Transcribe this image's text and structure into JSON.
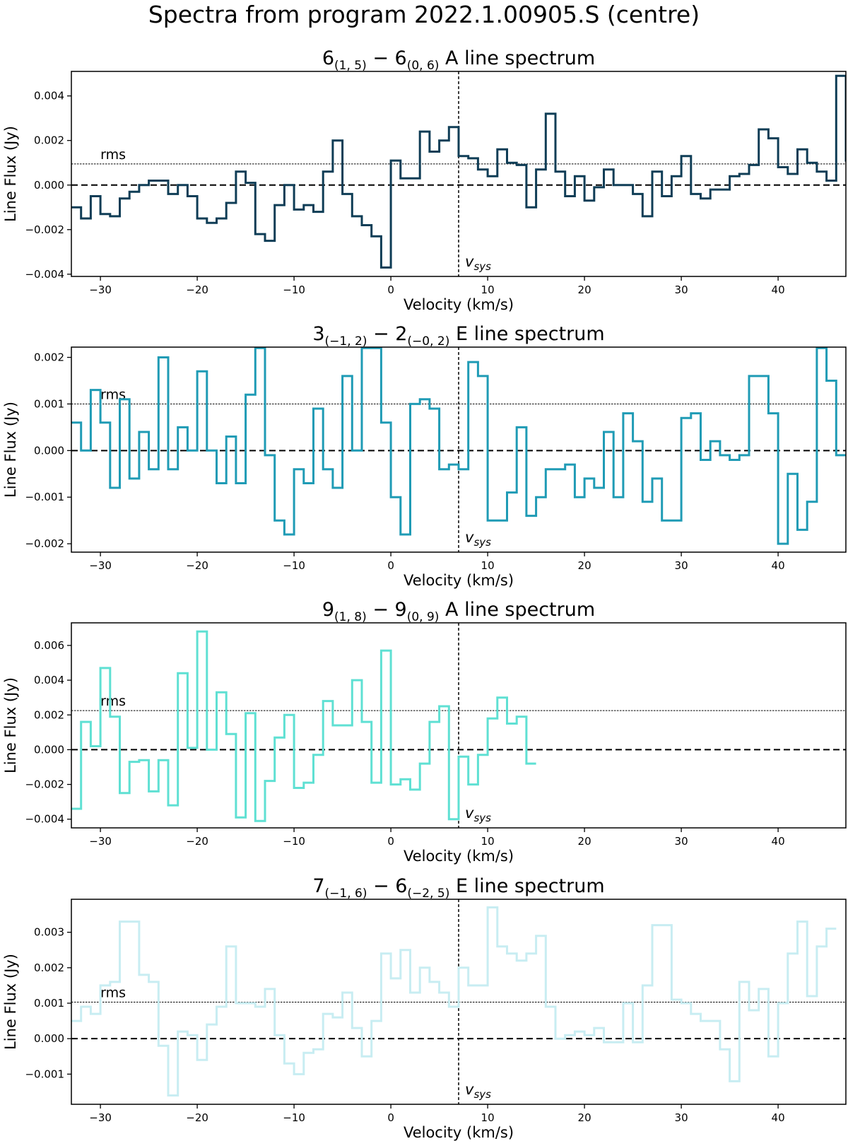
{
  "figure": {
    "title": "Spectra from program 2022.1.00905.S (centre)"
  },
  "chart_data": [
    {
      "type": "line",
      "style": "step",
      "title": "6(1,5) − 6(0,6) A line spectrum",
      "title_parts": {
        "n1": "6",
        "q1": "(1, 5)",
        "n2": "6",
        "q2": "(0, 6)",
        "tail": "A line spectrum"
      },
      "xlabel": "Velocity (km/s)",
      "ylabel": "Line Flux (Jy)",
      "xlim": [
        -33,
        47
      ],
      "ylim": [
        -0.0041,
        0.0051
      ],
      "xticks": [
        -30,
        -20,
        -10,
        0,
        10,
        20,
        30,
        40
      ],
      "xtick_labels": [
        "−30",
        "−20",
        "−10",
        "0",
        "10",
        "20",
        "30",
        "40"
      ],
      "yticks": [
        -0.004,
        -0.002,
        0.0,
        0.002,
        0.004
      ],
      "ytick_labels": [
        "−0.004",
        "−0.002",
        "0.000",
        "0.002",
        "0.004"
      ],
      "color": "#0f3d56",
      "rms": 0.00095,
      "rms_label": "rms",
      "vsys": 7.0,
      "vsys_label": "v",
      "vsys_sub": "sys",
      "x_start": -33.0,
      "x_step": 1.0,
      "values": [
        -0.001,
        -0.0015,
        -0.0005,
        -0.0013,
        -0.0014,
        -0.0006,
        -0.0003,
        0.0,
        0.0002,
        0.0002,
        -0.0004,
        0.0,
        -0.0005,
        -0.0015,
        -0.0017,
        -0.0015,
        -0.0008,
        0.0006,
        0.0001,
        -0.0022,
        -0.0025,
        -0.0009,
        0.0,
        -0.0011,
        -0.0009,
        -0.0012,
        0.0006,
        0.002,
        -0.0004,
        -0.0014,
        -0.0018,
        -0.0023,
        -0.0037,
        0.0011,
        0.0003,
        0.0003,
        0.0024,
        0.0015,
        0.002,
        0.0026,
        0.0013,
        0.0012,
        0.0007,
        0.0004,
        0.0016,
        0.001,
        0.0009,
        -0.001,
        0.0007,
        0.0032,
        0.0006,
        -0.0005,
        0.0004,
        -0.0007,
        -0.0001,
        0.0007,
        0.0,
        0.0,
        -0.0004,
        -0.0014,
        0.0006,
        -0.0005,
        0.0004,
        0.0013,
        -0.0004,
        -0.0006,
        -0.0002,
        -0.0002,
        0.0004,
        0.0005,
        0.0009,
        0.0025,
        0.0021,
        0.0008,
        0.0005,
        0.0016,
        0.001,
        0.0006,
        0.0002,
        0.0049,
        0.0011
      ]
    },
    {
      "type": "line",
      "style": "step",
      "title": "3(−1,2) − 2(−0,2) E line spectrum",
      "title_parts": {
        "n1": "3",
        "q1": "(−1, 2)",
        "n2": "2",
        "q2": "(−0, 2)",
        "tail": "E line spectrum"
      },
      "xlabel": "Velocity (km/s)",
      "ylabel": "Line Flux (Jy)",
      "xlim": [
        -33,
        47
      ],
      "ylim": [
        -0.00218,
        0.00222
      ],
      "xticks": [
        -30,
        -20,
        -10,
        0,
        10,
        20,
        30,
        40
      ],
      "xtick_labels": [
        "−30",
        "−20",
        "−10",
        "0",
        "10",
        "20",
        "30",
        "40"
      ],
      "yticks": [
        -0.002,
        -0.001,
        0.0,
        0.001,
        0.002
      ],
      "ytick_labels": [
        "−0.002",
        "−0.001",
        "0.000",
        "0.001",
        "0.002"
      ],
      "color": "#1f9bb5",
      "rms": 0.001,
      "rms_label": "rms",
      "vsys": 7.0,
      "vsys_label": "v",
      "vsys_sub": "sys",
      "x_start": -33.0,
      "x_step": 1.0,
      "values": [
        0.0006,
        -0.0,
        0.0013,
        0.0006,
        -0.0008,
        0.0011,
        -0.0006,
        0.0004,
        -0.0004,
        0.002,
        -0.0004,
        0.0005,
        -0.0,
        0.0017,
        -0.0,
        -0.0007,
        0.0003,
        -0.0007,
        0.0012,
        0.0022,
        -0.0001,
        -0.0015,
        -0.0018,
        -0.0004,
        -0.0007,
        0.0009,
        -0.0004,
        -0.0008,
        0.0016,
        0.0,
        0.0022,
        0.0022,
        0.0006,
        -0.001,
        -0.0018,
        0.001,
        0.0011,
        0.0009,
        -0.0004,
        -0.0003,
        -0.0004,
        0.0019,
        0.0016,
        -0.0015,
        -0.0015,
        -0.0009,
        0.0005,
        -0.0014,
        -0.001,
        -0.0004,
        -0.0004,
        -0.0003,
        -0.001,
        -0.0006,
        -0.0008,
        0.0004,
        -0.001,
        0.0008,
        0.0002,
        -0.0011,
        -0.0006,
        -0.0015,
        -0.0015,
        0.0007,
        0.0008,
        -0.0002,
        0.0002,
        -0.0001,
        -0.0002,
        -0.0001,
        0.0016,
        0.0016,
        0.0008,
        -0.002,
        -0.0005,
        -0.0017,
        -0.0011,
        0.0022,
        0.0015,
        -0.0001
      ]
    },
    {
      "type": "line",
      "style": "step",
      "title": "9(1,8) − 9(0,9) A line spectrum",
      "title_parts": {
        "n1": "9",
        "q1": "(1, 8)",
        "n2": "9",
        "q2": "(0, 9)",
        "tail": "A line spectrum"
      },
      "xlabel": "Velocity (km/s)",
      "ylabel": "Line Flux (Jy)",
      "xlim": [
        -33,
        47
      ],
      "ylim": [
        -0.0045,
        0.0073
      ],
      "xticks": [
        -30,
        -20,
        -10,
        0,
        10,
        20,
        30,
        40
      ],
      "xtick_labels": [
        "−30",
        "−20",
        "−10",
        "0",
        "10",
        "20",
        "30",
        "40"
      ],
      "yticks": [
        -0.004,
        -0.002,
        0.0,
        0.002,
        0.004,
        0.006
      ],
      "ytick_labels": [
        "−0.004",
        "−0.002",
        "0.000",
        "0.002",
        "0.004",
        "0.006"
      ],
      "color": "#5fe0d3",
      "rms": 0.00225,
      "rms_label": "rms",
      "vsys": 7.0,
      "vsys_label": "v",
      "vsys_sub": "sys",
      "x_start": -33.0,
      "x_step": 1.0,
      "values": [
        -0.0034,
        0.0016,
        0.0002,
        0.0047,
        0.0019,
        -0.0025,
        -0.0007,
        -0.0006,
        -0.0024,
        -0.0006,
        -0.0032,
        0.0044,
        0.0001,
        0.0068,
        0.0,
        0.0033,
        0.0009,
        -0.0039,
        0.0021,
        -0.0041,
        -0.0018,
        0.0007,
        0.002,
        -0.0022,
        -0.0019,
        -0.0003,
        0.0028,
        0.0014,
        0.0014,
        0.004,
        0.0016,
        -0.0019,
        0.0057,
        -0.002,
        -0.0017,
        -0.0023,
        -0.0008,
        0.0016,
        0.0025,
        -0.004,
        -0.0004,
        -0.002,
        -0.0003,
        0.0018,
        0.003,
        0.0015,
        0.0019,
        -0.0008
      ]
    },
    {
      "type": "line",
      "style": "step",
      "title": "7(−1,6) − 6(−2,5) E line spectrum",
      "title_parts": {
        "n1": "7",
        "q1": "(−1, 6)",
        "n2": "6",
        "q2": "(−2, 5)",
        "tail": "E line spectrum"
      },
      "xlabel": "Velocity (km/s)",
      "ylabel": "Line Flux (Jy)",
      "xlim": [
        -33,
        47
      ],
      "ylim": [
        -0.00185,
        0.00393
      ],
      "xticks": [
        -30,
        -20,
        -10,
        0,
        10,
        20,
        30,
        40
      ],
      "xtick_labels": [
        "−30",
        "−20",
        "−10",
        "0",
        "10",
        "20",
        "30",
        "40"
      ],
      "yticks": [
        -0.001,
        0.0,
        0.001,
        0.002,
        0.003
      ],
      "ytick_labels": [
        "−0.001",
        "0.000",
        "0.001",
        "0.002",
        "0.003"
      ],
      "color": "#c8edf2",
      "rms": 0.00103,
      "rms_label": "rms",
      "vsys": 7.0,
      "vsys_label": "v",
      "vsys_sub": "sys",
      "x_start": -33.0,
      "x_step": 1.0,
      "values": [
        0.0005,
        0.0009,
        0.0007,
        0.0015,
        0.0016,
        0.0033,
        0.0033,
        0.0018,
        0.0016,
        -0.0002,
        -0.0016,
        0.0002,
        0.0001,
        -0.0006,
        0.0004,
        0.0009,
        0.0026,
        0.001,
        0.001,
        0.0009,
        0.0014,
        0.0001,
        -0.0007,
        -0.001,
        -0.0004,
        -0.0003,
        0.0007,
        0.0006,
        0.0013,
        0.0003,
        -0.0005,
        0.0005,
        0.0024,
        0.0017,
        0.0025,
        0.0013,
        0.002,
        0.0016,
        0.0013,
        0.0009,
        0.002,
        0.0015,
        0.0015,
        0.0037,
        0.0026,
        0.0024,
        0.0022,
        0.0024,
        0.0029,
        0.0009,
        0.0,
        0.0001,
        0.0002,
        0.0001,
        0.0003,
        -0.0001,
        -0.0001,
        0.001,
        -0.0001,
        0.0015,
        0.0032,
        0.0032,
        0.0011,
        0.001,
        0.0007,
        0.0005,
        0.0005,
        -0.0003,
        -0.0012,
        0.0016,
        0.0008,
        0.0014,
        -0.0005,
        0.001,
        0.0024,
        0.0033,
        0.0012,
        0.0026,
        0.0031
      ]
    }
  ]
}
